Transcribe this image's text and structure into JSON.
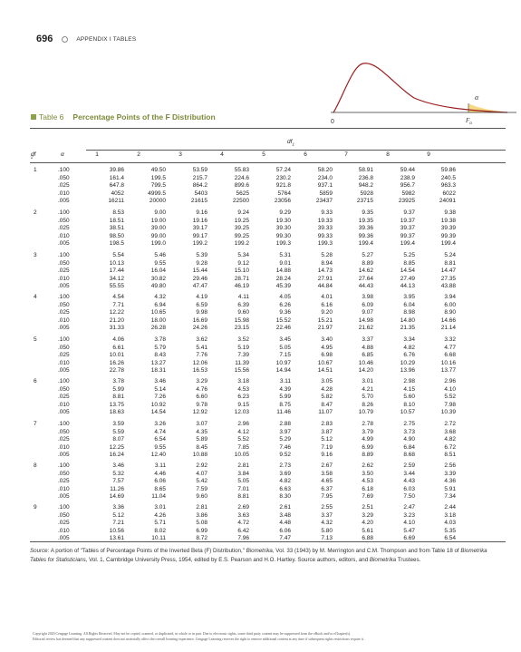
{
  "header": {
    "page_number": "696",
    "section": "APPENDIX I TABLES"
  },
  "graph": {
    "alpha_symbol": "α",
    "zero_label": "0",
    "f_label": "F",
    "f_sub": "α"
  },
  "table": {
    "label": "Table 6",
    "title": "Percentage Points of the F Distribution",
    "df1_label": "df",
    "df1_sub": "1",
    "df2_label": "df",
    "df2_sub": "2",
    "alpha_label": "α",
    "columns": [
      "1",
      "2",
      "3",
      "4",
      "5",
      "6",
      "7",
      "8",
      "9"
    ],
    "alphas": [
      ".100",
      ".050",
      ".025",
      ".010",
      ".005"
    ],
    "groups": [
      {
        "df2": "1",
        "rows": [
          [
            "39.86",
            "49.50",
            "53.59",
            "55.83",
            "57.24",
            "58.20",
            "58.91",
            "59.44",
            "59.86"
          ],
          [
            "161.4",
            "199.5",
            "215.7",
            "224.6",
            "230.2",
            "234.0",
            "236.8",
            "238.9",
            "240.5"
          ],
          [
            "647.8",
            "799.5",
            "864.2",
            "899.6",
            "921.8",
            "937.1",
            "948.2",
            "956.7",
            "963.3"
          ],
          [
            "4052",
            "4999.5",
            "5403",
            "5625",
            "5764",
            "5859",
            "5928",
            "5982",
            "6022"
          ],
          [
            "16211",
            "20000",
            "21615",
            "22500",
            "23056",
            "23437",
            "23715",
            "23925",
            "24091"
          ]
        ]
      },
      {
        "df2": "2",
        "rows": [
          [
            "8.53",
            "9.00",
            "9.16",
            "9.24",
            "9.29",
            "9.33",
            "9.35",
            "9.37",
            "9.38"
          ],
          [
            "18.51",
            "19.00",
            "19.16",
            "19.25",
            "19.30",
            "19.33",
            "19.35",
            "19.37",
            "19.38"
          ],
          [
            "38.51",
            "39.00",
            "39.17",
            "39.25",
            "39.30",
            "39.33",
            "39.36",
            "39.37",
            "39.39"
          ],
          [
            "98.50",
            "99.00",
            "99.17",
            "99.25",
            "99.30",
            "99.33",
            "99.36",
            "99.37",
            "99.39"
          ],
          [
            "198.5",
            "199.0",
            "199.2",
            "199.2",
            "199.3",
            "199.3",
            "199.4",
            "199.4",
            "199.4"
          ]
        ]
      },
      {
        "df2": "3",
        "rows": [
          [
            "5.54",
            "5.46",
            "5.39",
            "5.34",
            "5.31",
            "5.28",
            "5.27",
            "5.25",
            "5.24"
          ],
          [
            "10.13",
            "9.55",
            "9.28",
            "9.12",
            "9.01",
            "8.94",
            "8.89",
            "8.85",
            "8.81"
          ],
          [
            "17.44",
            "16.04",
            "15.44",
            "15.10",
            "14.88",
            "14.73",
            "14.62",
            "14.54",
            "14.47"
          ],
          [
            "34.12",
            "30.82",
            "29.46",
            "28.71",
            "28.24",
            "27.91",
            "27.64",
            "27.49",
            "27.35"
          ],
          [
            "55.55",
            "49.80",
            "47.47",
            "46.19",
            "45.39",
            "44.84",
            "44.43",
            "44.13",
            "43.88"
          ]
        ]
      },
      {
        "df2": "4",
        "rows": [
          [
            "4.54",
            "4.32",
            "4.19",
            "4.11",
            "4.05",
            "4.01",
            "3.98",
            "3.95",
            "3.94"
          ],
          [
            "7.71",
            "6.94",
            "6.59",
            "6.39",
            "6.26",
            "6.16",
            "6.09",
            "6.04",
            "6.00"
          ],
          [
            "12.22",
            "10.65",
            "9.98",
            "9.60",
            "9.36",
            "9.20",
            "9.07",
            "8.98",
            "8.90"
          ],
          [
            "21.20",
            "18.00",
            "16.69",
            "15.98",
            "15.52",
            "15.21",
            "14.98",
            "14.80",
            "14.66"
          ],
          [
            "31.33",
            "26.28",
            "24.26",
            "23.15",
            "22.46",
            "21.97",
            "21.62",
            "21.35",
            "21.14"
          ]
        ]
      },
      {
        "df2": "5",
        "rows": [
          [
            "4.06",
            "3.78",
            "3.62",
            "3.52",
            "3.45",
            "3.40",
            "3.37",
            "3.34",
            "3.32"
          ],
          [
            "6.61",
            "5.79",
            "5.41",
            "5.19",
            "5.05",
            "4.95",
            "4.88",
            "4.82",
            "4.77"
          ],
          [
            "10.01",
            "8.43",
            "7.76",
            "7.39",
            "7.15",
            "6.98",
            "6.85",
            "6.76",
            "6.68"
          ],
          [
            "16.26",
            "13.27",
            "12.06",
            "11.39",
            "10.97",
            "10.67",
            "10.46",
            "10.29",
            "10.16"
          ],
          [
            "22.78",
            "18.31",
            "16.53",
            "15.56",
            "14.94",
            "14.51",
            "14.20",
            "13.96",
            "13.77"
          ]
        ]
      },
      {
        "df2": "6",
        "rows": [
          [
            "3.78",
            "3.46",
            "3.29",
            "3.18",
            "3.11",
            "3.05",
            "3.01",
            "2.98",
            "2.96"
          ],
          [
            "5.99",
            "5.14",
            "4.76",
            "4.53",
            "4.39",
            "4.28",
            "4.21",
            "4.15",
            "4.10"
          ],
          [
            "8.81",
            "7.26",
            "6.60",
            "6.23",
            "5.99",
            "5.82",
            "5.70",
            "5.60",
            "5.52"
          ],
          [
            "13.75",
            "10.92",
            "9.78",
            "9.15",
            "8.75",
            "8.47",
            "8.26",
            "8.10",
            "7.98"
          ],
          [
            "18.63",
            "14.54",
            "12.92",
            "12.03",
            "11.46",
            "11.07",
            "10.79",
            "10.57",
            "10.39"
          ]
        ]
      },
      {
        "df2": "7",
        "rows": [
          [
            "3.59",
            "3.26",
            "3.07",
            "2.96",
            "2.88",
            "2.83",
            "2.78",
            "2.75",
            "2.72"
          ],
          [
            "5.59",
            "4.74",
            "4.35",
            "4.12",
            "3.97",
            "3.87",
            "3.79",
            "3.73",
            "3.68"
          ],
          [
            "8.07",
            "6.54",
            "5.89",
            "5.52",
            "5.29",
            "5.12",
            "4.99",
            "4.90",
            "4.82"
          ],
          [
            "12.25",
            "9.55",
            "8.45",
            "7.85",
            "7.46",
            "7.19",
            "6.99",
            "6.84",
            "6.72"
          ],
          [
            "16.24",
            "12.40",
            "10.88",
            "10.05",
            "9.52",
            "9.16",
            "8.89",
            "8.68",
            "8.51"
          ]
        ]
      },
      {
        "df2": "8",
        "rows": [
          [
            "3.46",
            "3.11",
            "2.92",
            "2.81",
            "2.73",
            "2.67",
            "2.62",
            "2.59",
            "2.56"
          ],
          [
            "5.32",
            "4.46",
            "4.07",
            "3.84",
            "3.69",
            "3.58",
            "3.50",
            "3.44",
            "3.39"
          ],
          [
            "7.57",
            "6.06",
            "5.42",
            "5.05",
            "4.82",
            "4.65",
            "4.53",
            "4.43",
            "4.36"
          ],
          [
            "11.26",
            "8.65",
            "7.59",
            "7.01",
            "6.63",
            "6.37",
            "6.18",
            "6.03",
            "5.91"
          ],
          [
            "14.69",
            "11.04",
            "9.60",
            "8.81",
            "8.30",
            "7.95",
            "7.69",
            "7.50",
            "7.34"
          ]
        ]
      },
      {
        "df2": "9",
        "rows": [
          [
            "3.36",
            "3.01",
            "2.81",
            "2.69",
            "2.61",
            "2.55",
            "2.51",
            "2.47",
            "2.44"
          ],
          [
            "5.12",
            "4.26",
            "3.86",
            "3.63",
            "3.48",
            "3.37",
            "3.29",
            "3.23",
            "3.18"
          ],
          [
            "7.21",
            "5.71",
            "5.08",
            "4.72",
            "4.48",
            "4.32",
            "4.20",
            "4.10",
            "4.03"
          ],
          [
            "10.56",
            "8.02",
            "6.99",
            "6.42",
            "6.06",
            "5.80",
            "5.61",
            "5.47",
            "5.35"
          ],
          [
            "13.61",
            "10.11",
            "8.72",
            "7.96",
            "7.47",
            "7.13",
            "6.88",
            "6.69",
            "6.54"
          ]
        ]
      }
    ]
  },
  "source": {
    "label": "Source:",
    "text_a": " A portion of \"Tables of Percentage Points of the Inverted Beta (F) Distribution,\" ",
    "journal": "Biometrika",
    "text_b": ", Vol. 33 (1943) by M. Merrington and C.M. Thompson and from Table 18 of ",
    "book": "Biometrika Tables for Statisticians",
    "text_c": ", Vol. 1, Cambridge University Press, 1954, edited by E.S. Pearson and H.O. Hartley. Source authors, editors, and ",
    "trustees": "Biometrika",
    "text_d": " Trustees."
  },
  "footer": {
    "line1": "Copyright 2020 Cengage Learning. All Rights Reserved. May not be copied, scanned, or duplicated, in whole or in part. Due to electronic rights, some third party content may be suppressed from the eBook and/or eChapter(s).",
    "line2": "Editorial review has deemed that any suppressed content does not materially affect the overall learning experience. Cengage Learning reserves the right to remove additional content at any time if subsequent rights restrictions require it."
  }
}
